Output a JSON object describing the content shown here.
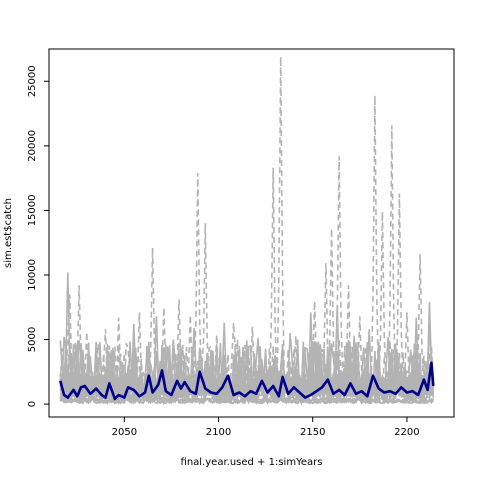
{
  "chart_data": {
    "type": "line",
    "xlabel": "final.year.used + 1:simYears",
    "ylabel": "sim.est$catch",
    "xlim": [
      2010,
      2225
    ],
    "ylim": [
      -1000,
      27500
    ],
    "x_ticks": [
      2050,
      2100,
      2150,
      2200
    ],
    "y_ticks": [
      0,
      5000,
      10000,
      15000,
      20000,
      25000
    ],
    "x_tick_labels": [
      "2050",
      "2100",
      "2150",
      "2200"
    ],
    "y_tick_labels": [
      "0",
      "5000",
      "10000",
      "15000",
      "20000",
      "25000"
    ],
    "grid": false,
    "x_start": 2016,
    "x_end": 2214,
    "colors": {
      "simulations": "#b3b3b3",
      "median": "#00008b",
      "axis": "#000000"
    },
    "series": [
      {
        "style": "dashed",
        "peaks": [
          [
            2021,
            8500
          ],
          [
            2026,
            9200
          ],
          [
            2030,
            5600
          ],
          [
            2040,
            5800
          ],
          [
            2047,
            6700
          ],
          [
            2058,
            7100
          ],
          [
            2065,
            12100
          ],
          [
            2071,
            7500
          ],
          [
            2079,
            8100
          ],
          [
            2085,
            6900
          ],
          [
            2089,
            17900
          ],
          [
            2093,
            14000
          ],
          [
            2099,
            5400
          ],
          [
            2108,
            6300
          ],
          [
            2118,
            6000
          ],
          [
            2129,
            18300
          ],
          [
            2133,
            26900
          ],
          [
            2141,
            5300
          ],
          [
            2151,
            8000
          ],
          [
            2157,
            10900
          ],
          [
            2160,
            13600
          ],
          [
            2164,
            19200
          ],
          [
            2169,
            9200
          ],
          [
            2175,
            6800
          ],
          [
            2183,
            23900
          ],
          [
            2187,
            14900
          ],
          [
            2192,
            21600
          ],
          [
            2196,
            16300
          ],
          [
            2200,
            7100
          ],
          [
            2207,
            11600
          ],
          [
            2212,
            5800
          ]
        ]
      },
      {
        "style": "solid",
        "peaks": [
          [
            2018,
            5200
          ],
          [
            2020,
            10200
          ],
          [
            2025,
            4600
          ],
          [
            2035,
            4800
          ],
          [
            2041,
            4200
          ],
          [
            2055,
            6200
          ],
          [
            2067,
            6800
          ],
          [
            2076,
            5000
          ],
          [
            2087,
            5900
          ],
          [
            2103,
            6300
          ],
          [
            2121,
            5100
          ],
          [
            2138,
            5500
          ],
          [
            2149,
            7100
          ],
          [
            2163,
            7600
          ],
          [
            2172,
            5300
          ],
          [
            2180,
            5800
          ],
          [
            2190,
            5200
          ],
          [
            2205,
            6700
          ],
          [
            2212,
            7900
          ]
        ]
      }
    ],
    "median": {
      "x": [
        2016,
        2018,
        2020,
        2023,
        2025,
        2027,
        2029,
        2032,
        2035,
        2038,
        2040,
        2042,
        2045,
        2047,
        2050,
        2052,
        2055,
        2058,
        2061,
        2063,
        2065,
        2068,
        2070,
        2072,
        2075,
        2078,
        2080,
        2082,
        2085,
        2088,
        2090,
        2093,
        2096,
        2099,
        2102,
        2105,
        2108,
        2111,
        2114,
        2117,
        2120,
        2123,
        2126,
        2129,
        2132,
        2134,
        2137,
        2140,
        2143,
        2146,
        2149,
        2152,
        2155,
        2158,
        2161,
        2164,
        2167,
        2170,
        2173,
        2176,
        2179,
        2182,
        2185,
        2188,
        2191,
        2194,
        2197,
        2200,
        2203,
        2206,
        2209,
        2211,
        2213,
        2214
      ],
      "y": [
        1800,
        700,
        500,
        1100,
        600,
        1300,
        1400,
        800,
        1200,
        700,
        500,
        1600,
        400,
        700,
        500,
        1300,
        1100,
        600,
        900,
        2200,
        900,
        1500,
        2600,
        1000,
        700,
        1800,
        1200,
        1700,
        1000,
        800,
        2500,
        1200,
        900,
        800,
        1300,
        2200,
        700,
        900,
        600,
        1000,
        800,
        1800,
        900,
        1400,
        600,
        2100,
        800,
        1300,
        900,
        500,
        700,
        1000,
        1300,
        1900,
        800,
        1100,
        700,
        1600,
        800,
        1000,
        600,
        2200,
        1200,
        900,
        1000,
        800,
        1300,
        900,
        1000,
        700,
        1900,
        1100,
        3200,
        1400
      ]
    }
  }
}
